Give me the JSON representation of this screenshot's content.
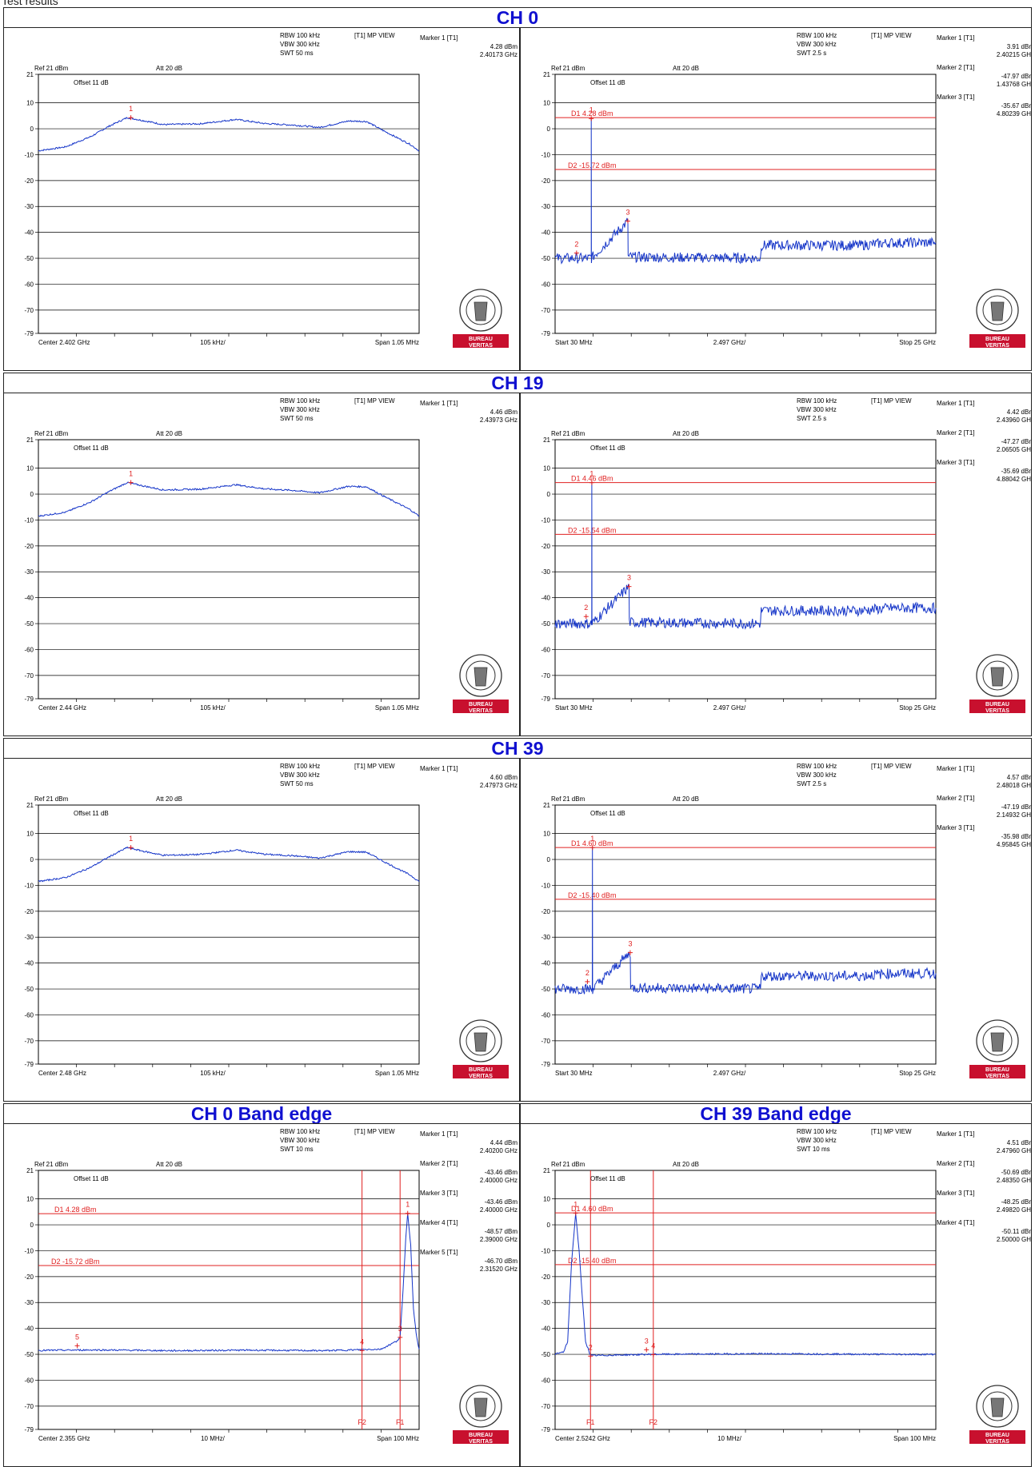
{
  "page": {
    "title": "Test results"
  },
  "legend_common": {
    "rbw": "RBW 100 kHz",
    "vbw": "VBW 300 kHz",
    "trace": "[T1] MP VIEW",
    "ref": "Ref 21 dBm",
    "att": "Att  20 dB",
    "offset": "Offset 11 dB",
    "logo_top": "BUREAU",
    "logo_bottom": "VERITAS"
  },
  "sections": [
    "CH 0",
    "CH 19",
    "CH 39",
    "CH 0 Band edge",
    "CH 39 Band edge"
  ],
  "colors": {
    "trace": "#1434c8",
    "marker": "#e02020",
    "grid": "#000000",
    "title": "#1010d0",
    "logo_red": "#c8102e"
  },
  "chart_data": [
    {
      "id": "ch0-inband",
      "type": "line",
      "swt": "SWT 50 ms",
      "yticks": [
        "21",
        "10",
        "0",
        "-10",
        "-20",
        "-30",
        "-40",
        "-50",
        "-60",
        "-70",
        "-79"
      ],
      "ylim": [
        -79,
        21
      ],
      "xlim": [
        2.401475,
        2.402525
      ],
      "x_unit": "GHz",
      "x_labels": {
        "left": "Center 2.402 GHz",
        "mid": "105 kHz/",
        "right": "Span 1.05 MHz"
      },
      "marker_panel": [
        {
          "label": "Marker 1 [T1]",
          "level": "4.28 dBm",
          "freq": "2.40173 GHz"
        }
      ],
      "markers": [
        {
          "n": "1",
          "x": 2.40173,
          "y": 4.28
        }
      ],
      "lines": [],
      "vlines": [],
      "series": [
        {
          "values": [
            [
              2.401475,
              -8.5
            ],
            [
              2.40155,
              -7.0
            ],
            [
              2.40162,
              -3.0
            ],
            [
              2.40167,
              1.0
            ],
            [
              2.40172,
              4.3
            ],
            [
              2.40177,
              3.0
            ],
            [
              2.40182,
              1.6
            ],
            [
              2.40192,
              1.9
            ],
            [
              2.40202,
              3.6
            ],
            [
              2.4021,
              2.0
            ],
            [
              2.40218,
              1.4
            ],
            [
              2.40225,
              0.5
            ],
            [
              2.40233,
              3.0
            ],
            [
              2.40238,
              2.8
            ],
            [
              2.40243,
              -1.0
            ],
            [
              2.4025,
              -6.0
            ],
            [
              2.402525,
              -8.5
            ]
          ]
        }
      ]
    },
    {
      "id": "ch0-spurious",
      "type": "line",
      "swt": "SWT 2.5 s",
      "yticks": [
        "21",
        "10",
        "0",
        "-10",
        "-20",
        "-30",
        "-40",
        "-50",
        "-60",
        "-70",
        "-79"
      ],
      "ylim": [
        -79,
        21
      ],
      "xlim": [
        0.03,
        25.0
      ],
      "x_unit": "GHz",
      "x_labels": {
        "left": "Start 30 MHz",
        "mid": "2.497 GHz/",
        "right": "Stop 25 GHz"
      },
      "marker_panel": [
        {
          "label": "Marker 1 [T1]",
          "level": "3.91 dBm",
          "freq": "2.40215 GHz"
        },
        {
          "label": "Marker 2 [T1]",
          "level": "-47.97 dBm",
          "freq": "1.43768 GHz"
        },
        {
          "label": "Marker 3 [T1]",
          "level": "-35.67 dBm",
          "freq": "4.80239 GHz"
        }
      ],
      "markers": [
        {
          "n": "1",
          "x": 2.40215,
          "y": 3.91
        },
        {
          "n": "2",
          "x": 1.43768,
          "y": -47.97
        },
        {
          "n": "3",
          "x": 4.80239,
          "y": -35.67
        }
      ],
      "lines": [
        {
          "label": "D1 4.28 dBm",
          "y": 4.28
        },
        {
          "label": "D2 -15.72 dBm",
          "y": -15.72
        }
      ],
      "vlines": [],
      "series": [
        {
          "values": [
            [
              0.03,
              -50
            ],
            [
              2.4,
              -50
            ],
            [
              2.40215,
              3.91
            ],
            [
              2.41,
              -50
            ],
            [
              4.80239,
              -35.67
            ],
            [
              4.82,
              -49.5
            ],
            [
              13.5,
              -50
            ],
            [
              13.55,
              -45
            ],
            [
              20,
              -45
            ],
            [
              22,
              -44
            ],
            [
              25,
              -44
            ]
          ]
        }
      ]
    },
    {
      "id": "ch19-inband",
      "type": "line",
      "swt": "SWT 50 ms",
      "yticks": [
        "21",
        "10",
        "0",
        "-10",
        "-20",
        "-30",
        "-40",
        "-50",
        "-60",
        "-70",
        "-79"
      ],
      "ylim": [
        -79,
        21
      ],
      "xlim": [
        2.439475,
        2.440525
      ],
      "x_unit": "GHz",
      "x_labels": {
        "left": "Center 2.44 GHz",
        "mid": "105 kHz/",
        "right": "Span 1.05 MHz"
      },
      "marker_panel": [
        {
          "label": "Marker 1 [T1]",
          "level": "4.46 dBm",
          "freq": "2.43973 GHz"
        }
      ],
      "markers": [
        {
          "n": "1",
          "x": 2.43973,
          "y": 4.46
        }
      ],
      "lines": [],
      "vlines": [],
      "series": [
        {
          "values": [
            [
              2.439475,
              -8.5
            ],
            [
              2.43955,
              -7.0
            ],
            [
              2.43962,
              -3.0
            ],
            [
              2.43967,
              1.0
            ],
            [
              2.43972,
              4.46
            ],
            [
              2.43977,
              3.0
            ],
            [
              2.43982,
              1.6
            ],
            [
              2.43992,
              1.9
            ],
            [
              2.44002,
              3.6
            ],
            [
              2.4401,
              2.0
            ],
            [
              2.44018,
              1.4
            ],
            [
              2.44025,
              0.5
            ],
            [
              2.44033,
              3.0
            ],
            [
              2.44038,
              2.8
            ],
            [
              2.44043,
              -1.0
            ],
            [
              2.4405,
              -6.0
            ],
            [
              2.440525,
              -8.5
            ]
          ]
        }
      ]
    },
    {
      "id": "ch19-spurious",
      "type": "line",
      "swt": "SWT 2.5 s",
      "yticks": [
        "21",
        "10",
        "0",
        "-10",
        "-20",
        "-30",
        "-40",
        "-50",
        "-60",
        "-70",
        "-79"
      ],
      "ylim": [
        -79,
        21
      ],
      "xlim": [
        0.03,
        25.0
      ],
      "x_unit": "GHz",
      "x_labels": {
        "left": "Start 30 MHz",
        "mid": "2.497 GHz/",
        "right": "Stop 25 GHz"
      },
      "marker_panel": [
        {
          "label": "Marker 1 [T1]",
          "level": "4.42 dBm",
          "freq": "2.43960 GHz"
        },
        {
          "label": "Marker 2 [T1]",
          "level": "-47.27 dBm",
          "freq": "2.06505 GHz"
        },
        {
          "label": "Marker 3 [T1]",
          "level": "-35.69 dBm",
          "freq": "4.88042 GHz"
        }
      ],
      "markers": [
        {
          "n": "1",
          "x": 2.4396,
          "y": 4.42
        },
        {
          "n": "2",
          "x": 2.06505,
          "y": -47.27
        },
        {
          "n": "3",
          "x": 4.88042,
          "y": -35.69
        }
      ],
      "lines": [
        {
          "label": "D1 4.46 dBm",
          "y": 4.46
        },
        {
          "label": "D2 -15.54 dBm",
          "y": -15.54
        }
      ],
      "vlines": [],
      "series": [
        {
          "values": [
            [
              0.03,
              -50
            ],
            [
              2.43,
              -50
            ],
            [
              2.4396,
              4.42
            ],
            [
              2.45,
              -50
            ],
            [
              4.88042,
              -35.69
            ],
            [
              4.9,
              -49.5
            ],
            [
              13.5,
              -50
            ],
            [
              13.55,
              -45
            ],
            [
              20,
              -45
            ],
            [
              22,
              -44
            ],
            [
              25,
              -44
            ]
          ]
        }
      ]
    },
    {
      "id": "ch39-inband",
      "type": "line",
      "swt": "SWT 50 ms",
      "yticks": [
        "21",
        "10",
        "0",
        "-10",
        "-20",
        "-30",
        "-40",
        "-50",
        "-60",
        "-70",
        "-79"
      ],
      "ylim": [
        -79,
        21
      ],
      "xlim": [
        2.479475,
        2.480525
      ],
      "x_unit": "GHz",
      "x_labels": {
        "left": "Center 2.48 GHz",
        "mid": "105 kHz/",
        "right": "Span 1.05 MHz"
      },
      "marker_panel": [
        {
          "label": "Marker 1 [T1]",
          "level": "4.60 dBm",
          "freq": "2.47973 GHz"
        }
      ],
      "markers": [
        {
          "n": "1",
          "x": 2.47973,
          "y": 4.6
        }
      ],
      "lines": [],
      "vlines": [],
      "series": [
        {
          "values": [
            [
              2.479475,
              -8.5
            ],
            [
              2.47955,
              -7.0
            ],
            [
              2.47962,
              -3.0
            ],
            [
              2.47967,
              1.0
            ],
            [
              2.47972,
              4.6
            ],
            [
              2.47977,
              3.0
            ],
            [
              2.47982,
              1.6
            ],
            [
              2.47992,
              1.9
            ],
            [
              2.48002,
              3.6
            ],
            [
              2.4801,
              2.0
            ],
            [
              2.48018,
              1.4
            ],
            [
              2.48025,
              0.5
            ],
            [
              2.48033,
              3.0
            ],
            [
              2.48038,
              2.8
            ],
            [
              2.48043,
              -1.0
            ],
            [
              2.4805,
              -6.0
            ],
            [
              2.480525,
              -8.5
            ]
          ]
        }
      ]
    },
    {
      "id": "ch39-spurious",
      "type": "line",
      "swt": "SWT 2.5 s",
      "yticks": [
        "21",
        "10",
        "0",
        "-10",
        "-20",
        "-30",
        "-40",
        "-50",
        "-60",
        "-70",
        "-79"
      ],
      "ylim": [
        -79,
        21
      ],
      "xlim": [
        0.03,
        25.0
      ],
      "x_unit": "GHz",
      "x_labels": {
        "left": "Start 30 MHz",
        "mid": "2.497 GHz/",
        "right": "Stop 25 GHz"
      },
      "marker_panel": [
        {
          "label": "Marker 1 [T1]",
          "level": "4.57 dBm",
          "freq": "2.48018 GHz"
        },
        {
          "label": "Marker 2 [T1]",
          "level": "-47.19 dBm",
          "freq": "2.14932 GHz"
        },
        {
          "label": "Marker 3 [T1]",
          "level": "-35.98 dBm",
          "freq": "4.95845 GHz"
        }
      ],
      "markers": [
        {
          "n": "1",
          "x": 2.48018,
          "y": 4.57
        },
        {
          "n": "2",
          "x": 2.14932,
          "y": -47.19
        },
        {
          "n": "3",
          "x": 4.95845,
          "y": -35.98
        }
      ],
      "lines": [
        {
          "label": "D1 4.60 dBm",
          "y": 4.6
        },
        {
          "label": "D2 -15.40 dBm",
          "y": -15.4
        }
      ],
      "vlines": [],
      "series": [
        {
          "values": [
            [
              0.03,
              -50
            ],
            [
              2.47,
              -50
            ],
            [
              2.48018,
              4.57
            ],
            [
              2.49,
              -50
            ],
            [
              4.95845,
              -35.98
            ],
            [
              4.98,
              -49.5
            ],
            [
              13.5,
              -50
            ],
            [
              13.55,
              -45
            ],
            [
              20,
              -45
            ],
            [
              22,
              -44
            ],
            [
              25,
              -44
            ]
          ]
        }
      ]
    },
    {
      "id": "ch0-bandedge",
      "type": "line",
      "swt": "SWT 10 ms",
      "yticks": [
        "21",
        "10",
        "0",
        "-10",
        "-20",
        "-30",
        "-40",
        "-50",
        "-60",
        "-70",
        "-79"
      ],
      "ylim": [
        -79,
        21
      ],
      "xlim": [
        2.305,
        2.405
      ],
      "x_unit": "GHz",
      "x_labels": {
        "left": "Center 2.355 GHz",
        "mid": "10 MHz/",
        "right": "Span 100 MHz"
      },
      "marker_panel": [
        {
          "label": "Marker 1 [T1]",
          "level": "4.44 dBm",
          "freq": "2.40200 GHz"
        },
        {
          "label": "Marker 2 [T1]",
          "level": "-43.46 dBm",
          "freq": "2.40000 GHz"
        },
        {
          "label": "Marker 3 [T1]",
          "level": "-43.46 dBm",
          "freq": "2.40000 GHz"
        },
        {
          "label": "Marker 4 [T1]",
          "level": "-48.57 dBm",
          "freq": "2.39000 GHz"
        },
        {
          "label": "Marker 5 [T1]",
          "level": "-46.70 dBm",
          "freq": "2.31520 GHz"
        }
      ],
      "markers": [
        {
          "n": "1",
          "x": 2.402,
          "y": 4.44
        },
        {
          "n": "3",
          "x": 2.4,
          "y": -43.46
        },
        {
          "n": "4",
          "x": 2.39,
          "y": -48.57
        },
        {
          "n": "5",
          "x": 2.3152,
          "y": -46.7
        }
      ],
      "lines": [
        {
          "label": "D1 4.28 dBm",
          "y": 4.28
        },
        {
          "label": "D2 -15.72 dBm",
          "y": -15.72
        }
      ],
      "vlines": [
        {
          "label": "F2",
          "x": 2.39
        },
        {
          "label": "F1",
          "x": 2.4
        }
      ],
      "series": [
        {
          "values": [
            [
              2.305,
              -48.5
            ],
            [
              2.32,
              -48.3
            ],
            [
              2.34,
              -48.6
            ],
            [
              2.36,
              -48.4
            ],
            [
              2.38,
              -48.6
            ],
            [
              2.395,
              -48.0
            ],
            [
              2.399,
              -45
            ],
            [
              2.4,
              -43.5
            ],
            [
              2.4008,
              -25
            ],
            [
              2.4015,
              -5
            ],
            [
              2.402,
              4.44
            ],
            [
              2.4028,
              -8
            ],
            [
              2.4035,
              -32
            ],
            [
              2.4042,
              -42
            ],
            [
              2.405,
              -48
            ]
          ]
        }
      ]
    },
    {
      "id": "ch39-bandedge",
      "type": "line",
      "swt": "SWT 10 ms",
      "yticks": [
        "21",
        "10",
        "0",
        "-10",
        "-20",
        "-30",
        "-40",
        "-50",
        "-60",
        "-70",
        "-79"
      ],
      "ylim": [
        -79,
        21
      ],
      "xlim": [
        2.4742,
        2.5742
      ],
      "x_unit": "GHz",
      "x_labels": {
        "left": "Center 2.5242 GHz",
        "mid": "10 MHz/",
        "right": "Span 100 MHz"
      },
      "marker_panel": [
        {
          "label": "Marker 1 [T1]",
          "level": "4.51 dBm",
          "freq": "2.47960 GHz"
        },
        {
          "label": "Marker 2 [T1]",
          "level": "-50.69 dBm",
          "freq": "2.48350 GHz"
        },
        {
          "label": "Marker 3 [T1]",
          "level": "-48.25 dBm",
          "freq": "2.49820 GHz"
        },
        {
          "label": "Marker 4 [T1]",
          "level": "-50.11 dBm",
          "freq": "2.50000 GHz"
        }
      ],
      "markers": [
        {
          "n": "1",
          "x": 2.4796,
          "y": 4.51
        },
        {
          "n": "2",
          "x": 2.4835,
          "y": -50.69
        },
        {
          "n": "3",
          "x": 2.4982,
          "y": -48.25
        },
        {
          "n": "4",
          "x": 2.5,
          "y": -50.11
        }
      ],
      "lines": [
        {
          "label": "D1 4.60 dBm",
          "y": 4.6
        },
        {
          "label": "D2 -15.40 dBm",
          "y": -15.4
        }
      ],
      "vlines": [
        {
          "label": "F1",
          "x": 2.4835
        },
        {
          "label": "F2",
          "x": 2.5
        }
      ],
      "series": [
        {
          "values": [
            [
              2.4742,
              -50
            ],
            [
              2.4765,
              -49
            ],
            [
              2.4775,
              -45
            ],
            [
              2.4785,
              -15
            ],
            [
              2.4796,
              4.51
            ],
            [
              2.4805,
              -10
            ],
            [
              2.4812,
              -25
            ],
            [
              2.4822,
              -45
            ],
            [
              2.4835,
              -50.5
            ],
            [
              2.5,
              -50
            ],
            [
              2.53,
              -49.8
            ],
            [
              2.56,
              -50
            ],
            [
              2.5742,
              -50
            ]
          ]
        }
      ]
    }
  ]
}
